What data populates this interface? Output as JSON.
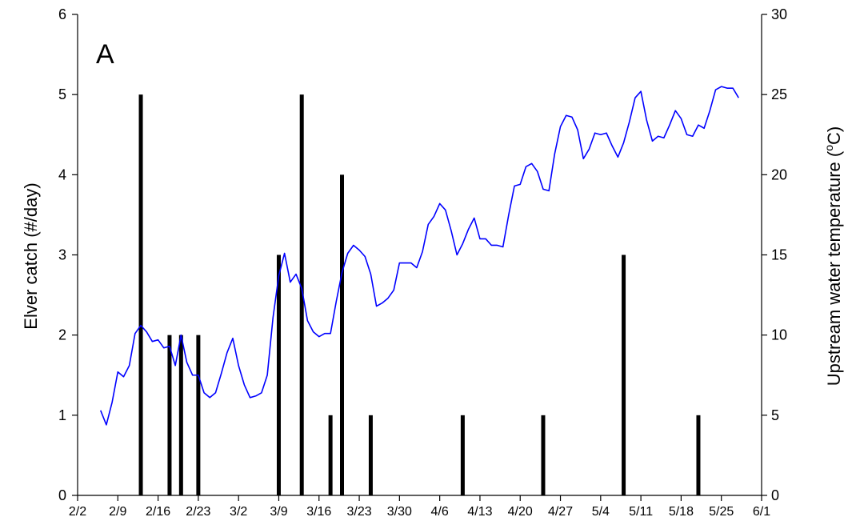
{
  "chart_data": {
    "type": "bar+line",
    "panel_label": "A",
    "xlabel": "",
    "ylabel": "Elver catch (#/day)",
    "y2label": "Upstream water temperature (°C)",
    "y2label_parts": {
      "pre": "Upstream water temperature (",
      "sup": "o",
      "post": "C)"
    },
    "xlim": [
      "2/2",
      "6/1"
    ],
    "ylim": [
      0,
      6
    ],
    "y2lim": [
      0,
      30
    ],
    "x_tick_labels": [
      "2/2",
      "2/9",
      "2/16",
      "2/23",
      "3/2",
      "3/9",
      "3/16",
      "3/23",
      "3/30",
      "4/6",
      "4/13",
      "4/20",
      "4/27",
      "5/4",
      "5/11",
      "5/18",
      "5/25",
      "6/1"
    ],
    "y_tick_labels": [
      "0",
      "1",
      "2",
      "3",
      "4",
      "5",
      "6"
    ],
    "y2_tick_labels": [
      "0",
      "5",
      "10",
      "15",
      "20",
      "25",
      "30"
    ],
    "grid": false,
    "series": [
      {
        "kind": "bar",
        "axis": "left",
        "color": "#000000",
        "points": [
          {
            "x": "2/13",
            "y": 5
          },
          {
            "x": "2/18",
            "y": 2
          },
          {
            "x": "2/20",
            "y": 2
          },
          {
            "x": "2/23",
            "y": 2
          },
          {
            "x": "3/9",
            "y": 3
          },
          {
            "x": "3/13",
            "y": 5
          },
          {
            "x": "3/18",
            "y": 1
          },
          {
            "x": "3/20",
            "y": 4
          },
          {
            "x": "3/25",
            "y": 1
          },
          {
            "x": "4/10",
            "y": 1
          },
          {
            "x": "4/24",
            "y": 1
          },
          {
            "x": "5/8",
            "y": 3
          },
          {
            "x": "5/21",
            "y": 1
          }
        ]
      },
      {
        "kind": "line",
        "axis": "right",
        "color": "#0000ff",
        "points": [
          {
            "x": "2/6",
            "y": 5.3
          },
          {
            "x": "2/7",
            "y": 4.4
          },
          {
            "x": "2/8",
            "y": 5.8
          },
          {
            "x": "2/9",
            "y": 7.7
          },
          {
            "x": "2/10",
            "y": 7.4
          },
          {
            "x": "2/11",
            "y": 8.1
          },
          {
            "x": "2/12",
            "y": 10.1
          },
          {
            "x": "2/13",
            "y": 10.6
          },
          {
            "x": "2/14",
            "y": 10.2
          },
          {
            "x": "2/15",
            "y": 9.6
          },
          {
            "x": "2/16",
            "y": 9.7
          },
          {
            "x": "2/17",
            "y": 9.2
          },
          {
            "x": "2/18",
            "y": 9.3
          },
          {
            "x": "2/19",
            "y": 8.1
          },
          {
            "x": "2/20",
            "y": 10.0
          },
          {
            "x": "2/21",
            "y": 8.3
          },
          {
            "x": "2/22",
            "y": 7.5
          },
          {
            "x": "2/23",
            "y": 7.5
          },
          {
            "x": "2/24",
            "y": 6.4
          },
          {
            "x": "2/25",
            "y": 6.1
          },
          {
            "x": "2/26",
            "y": 6.4
          },
          {
            "x": "2/27",
            "y": 7.6
          },
          {
            "x": "2/28",
            "y": 8.9
          },
          {
            "x": "3/1",
            "y": 9.8
          },
          {
            "x": "3/2",
            "y": 8.1
          },
          {
            "x": "3/3",
            "y": 6.9
          },
          {
            "x": "3/4",
            "y": 6.1
          },
          {
            "x": "3/5",
            "y": 6.2
          },
          {
            "x": "3/6",
            "y": 6.4
          },
          {
            "x": "3/7",
            "y": 7.5
          },
          {
            "x": "3/8",
            "y": 11.1
          },
          {
            "x": "3/9",
            "y": 13.7
          },
          {
            "x": "3/10",
            "y": 15.1
          },
          {
            "x": "3/11",
            "y": 13.3
          },
          {
            "x": "3/12",
            "y": 13.8
          },
          {
            "x": "3/13",
            "y": 12.9
          },
          {
            "x": "3/14",
            "y": 10.9
          },
          {
            "x": "3/15",
            "y": 10.2
          },
          {
            "x": "3/16",
            "y": 9.9
          },
          {
            "x": "3/17",
            "y": 10.1
          },
          {
            "x": "3/18",
            "y": 10.1
          },
          {
            "x": "3/19",
            "y": 12.1
          },
          {
            "x": "3/20",
            "y": 13.9
          },
          {
            "x": "3/21",
            "y": 15.1
          },
          {
            "x": "3/22",
            "y": 15.6
          },
          {
            "x": "3/23",
            "y": 15.3
          },
          {
            "x": "3/24",
            "y": 14.9
          },
          {
            "x": "3/25",
            "y": 13.8
          },
          {
            "x": "3/26",
            "y": 11.8
          },
          {
            "x": "3/27",
            "y": 12.0
          },
          {
            "x": "3/28",
            "y": 12.3
          },
          {
            "x": "3/29",
            "y": 12.8
          },
          {
            "x": "3/30",
            "y": 14.5
          },
          {
            "x": "3/31",
            "y": 14.5
          },
          {
            "x": "4/1",
            "y": 14.5
          },
          {
            "x": "4/2",
            "y": 14.2
          },
          {
            "x": "4/3",
            "y": 15.2
          },
          {
            "x": "4/4",
            "y": 16.9
          },
          {
            "x": "4/5",
            "y": 17.4
          },
          {
            "x": "4/6",
            "y": 18.2
          },
          {
            "x": "4/7",
            "y": 17.8
          },
          {
            "x": "4/8",
            "y": 16.5
          },
          {
            "x": "4/9",
            "y": 15.0
          },
          {
            "x": "4/10",
            "y": 15.7
          },
          {
            "x": "4/11",
            "y": 16.6
          },
          {
            "x": "4/12",
            "y": 17.3
          },
          {
            "x": "4/13",
            "y": 16.0
          },
          {
            "x": "4/14",
            "y": 16.0
          },
          {
            "x": "4/15",
            "y": 15.6
          },
          {
            "x": "4/16",
            "y": 15.6
          },
          {
            "x": "4/17",
            "y": 15.5
          },
          {
            "x": "4/18",
            "y": 17.5
          },
          {
            "x": "4/19",
            "y": 19.3
          },
          {
            "x": "4/20",
            "y": 19.4
          },
          {
            "x": "4/21",
            "y": 20.5
          },
          {
            "x": "4/22",
            "y": 20.7
          },
          {
            "x": "4/23",
            "y": 20.2
          },
          {
            "x": "4/24",
            "y": 19.1
          },
          {
            "x": "4/25",
            "y": 19.0
          },
          {
            "x": "4/26",
            "y": 21.3
          },
          {
            "x": "4/27",
            "y": 23.0
          },
          {
            "x": "4/28",
            "y": 23.7
          },
          {
            "x": "4/29",
            "y": 23.6
          },
          {
            "x": "4/30",
            "y": 22.8
          },
          {
            "x": "5/1",
            "y": 21.0
          },
          {
            "x": "5/2",
            "y": 21.6
          },
          {
            "x": "5/3",
            "y": 22.6
          },
          {
            "x": "5/4",
            "y": 22.5
          },
          {
            "x": "5/5",
            "y": 22.6
          },
          {
            "x": "5/6",
            "y": 21.8
          },
          {
            "x": "5/7",
            "y": 21.1
          },
          {
            "x": "5/8",
            "y": 22.0
          },
          {
            "x": "5/9",
            "y": 23.3
          },
          {
            "x": "5/10",
            "y": 24.8
          },
          {
            "x": "5/11",
            "y": 25.2
          },
          {
            "x": "5/12",
            "y": 23.4
          },
          {
            "x": "5/13",
            "y": 22.1
          },
          {
            "x": "5/14",
            "y": 22.4
          },
          {
            "x": "5/15",
            "y": 22.3
          },
          {
            "x": "5/16",
            "y": 23.1
          },
          {
            "x": "5/17",
            "y": 24.0
          },
          {
            "x": "5/18",
            "y": 23.5
          },
          {
            "x": "5/19",
            "y": 22.5
          },
          {
            "x": "5/20",
            "y": 22.4
          },
          {
            "x": "5/21",
            "y": 23.1
          },
          {
            "x": "5/22",
            "y": 22.9
          },
          {
            "x": "5/23",
            "y": 24.0
          },
          {
            "x": "5/24",
            "y": 25.3
          },
          {
            "x": "5/25",
            "y": 25.5
          },
          {
            "x": "5/26",
            "y": 25.4
          },
          {
            "x": "5/27",
            "y": 25.4
          },
          {
            "x": "5/28",
            "y": 24.8
          }
        ]
      }
    ]
  }
}
